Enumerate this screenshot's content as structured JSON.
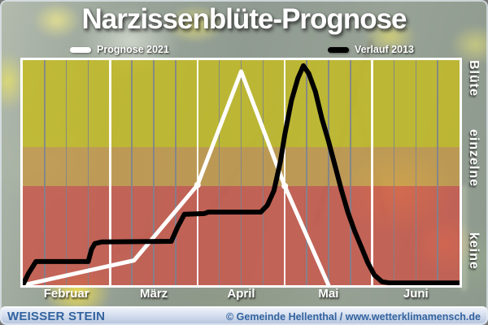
{
  "title": "Narzissenblüte-Prognose",
  "legend": [
    {
      "label": "Prognose 2021",
      "color": "#ffffff"
    },
    {
      "label": "Verlauf 2013",
      "color": "#000000"
    }
  ],
  "footer": {
    "left": "WEISSER STEIN",
    "right": "© Gemeinde Hellenthal / www.wetterklimamensch.de",
    "text_color": "#33639f"
  },
  "chart_data": {
    "type": "line",
    "title": "Narzissenblüte-Prognose",
    "x_unit": "weeks since Feb 1",
    "x_range": [
      0,
      20
    ],
    "months": [
      {
        "label": "Februar",
        "weeks": 4
      },
      {
        "label": "März",
        "weeks": 4
      },
      {
        "label": "April",
        "weeks": 4
      },
      {
        "label": "Mai",
        "weeks": 4
      },
      {
        "label": "Juni",
        "weeks": 4
      }
    ],
    "y_unit": "bloom level (0 = keine, 100 = volle Blüte)",
    "y_range": [
      0,
      100
    ],
    "grid": {
      "minor_every_weeks": 1,
      "major_every_weeks": 4,
      "minor_color": "#7c8392",
      "major_color": "#ffffff"
    },
    "zones": [
      {
        "label": "keine",
        "from": 0,
        "to": 44,
        "color": "rgba(203,85,73,0.82)"
      },
      {
        "label": "einzelne",
        "from": 44,
        "to": 61.5,
        "color": "rgba(197,152,72,0.82)"
      },
      {
        "label": "Blüte",
        "from": 61.5,
        "to": 100,
        "color": "rgba(196,187,34,0.84)"
      }
    ],
    "series": [
      {
        "name": "Prognose 2021",
        "color": "#ffffff",
        "width": 5,
        "points": [
          [
            0,
            0
          ],
          [
            5.1,
            11
          ],
          [
            8,
            44.5
          ],
          [
            10,
            95
          ],
          [
            12,
            44
          ],
          [
            14,
            0
          ]
        ],
        "markers": [
          [
            8,
            44.5
          ],
          [
            12,
            44
          ]
        ]
      },
      {
        "name": "Verlauf 2013",
        "color": "#000000",
        "width": 6,
        "points": [
          [
            0,
            0
          ],
          [
            0.25,
            5
          ],
          [
            0.6,
            10.5
          ],
          [
            3.0,
            10.5
          ],
          [
            3.15,
            16
          ],
          [
            3.3,
            18.5
          ],
          [
            3.6,
            19.2
          ],
          [
            6.8,
            19.5
          ],
          [
            7.1,
            26
          ],
          [
            7.4,
            31.5
          ],
          [
            8.3,
            31.8
          ],
          [
            8.5,
            32.5
          ],
          [
            10.9,
            32.5
          ],
          [
            11.2,
            35.5
          ],
          [
            11.5,
            42
          ],
          [
            11.8,
            55
          ],
          [
            12.0,
            67
          ],
          [
            12.3,
            82
          ],
          [
            12.6,
            92
          ],
          [
            12.85,
            97.5
          ],
          [
            13.1,
            94
          ],
          [
            13.4,
            86
          ],
          [
            13.7,
            74
          ],
          [
            14.0,
            64
          ],
          [
            14.3,
            53
          ],
          [
            14.6,
            42
          ],
          [
            14.9,
            32
          ],
          [
            15.2,
            24
          ],
          [
            15.5,
            17
          ],
          [
            15.8,
            10
          ],
          [
            16.1,
            4.5
          ],
          [
            16.45,
            1.5
          ],
          [
            16.8,
            1.0
          ],
          [
            20,
            1.0
          ]
        ],
        "markers": []
      }
    ]
  }
}
